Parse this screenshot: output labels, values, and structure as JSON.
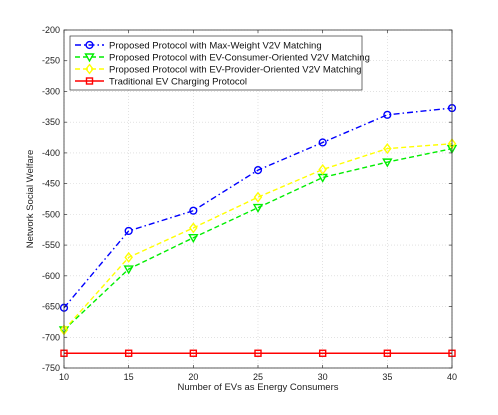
{
  "chart_data": {
    "type": "line",
    "title": "",
    "xlabel": "Number of EVs as Energy Consumers",
    "ylabel": "Network Social Welfare",
    "x": [
      10,
      15,
      20,
      25,
      30,
      35,
      40
    ],
    "xticks": [
      10,
      15,
      20,
      25,
      30,
      35,
      40
    ],
    "xlim": [
      10,
      40
    ],
    "ylim": [
      -750,
      -200
    ],
    "yticks": [
      -200,
      -250,
      -300,
      -350,
      -400,
      -450,
      -500,
      -550,
      -600,
      -650,
      -700,
      -750
    ],
    "grid": true,
    "legend_position": "top-left",
    "series": [
      {
        "name": "Proposed Protocol with Max-Weight V2V Matching",
        "values": [
          -652,
          -527,
          -494,
          -428,
          -383,
          -338,
          -327
        ],
        "color": "#0000ff",
        "line_style": "dash-dot",
        "marker": "circle"
      },
      {
        "name": "Proposed Protocol with EV-Consumer-Oriented V2V Matching",
        "values": [
          -688,
          -589,
          -538,
          -489,
          -440,
          -415,
          -393
        ],
        "color": "#00ee00",
        "line_style": "dashed",
        "marker": "triangle-down"
      },
      {
        "name": "Proposed Protocol with EV-Provider-Oriented V2V Matching",
        "values": [
          -688,
          -570,
          -522,
          -472,
          -427,
          -393,
          -385
        ],
        "color": "#ffff00",
        "line_style": "dashed",
        "marker": "diamond"
      },
      {
        "name": "Traditional EV Charging Protocol",
        "values": [
          -726,
          -726,
          -726,
          -726,
          -726,
          -726,
          -726
        ],
        "color": "#ff0000",
        "line_style": "solid",
        "marker": "square"
      }
    ]
  }
}
